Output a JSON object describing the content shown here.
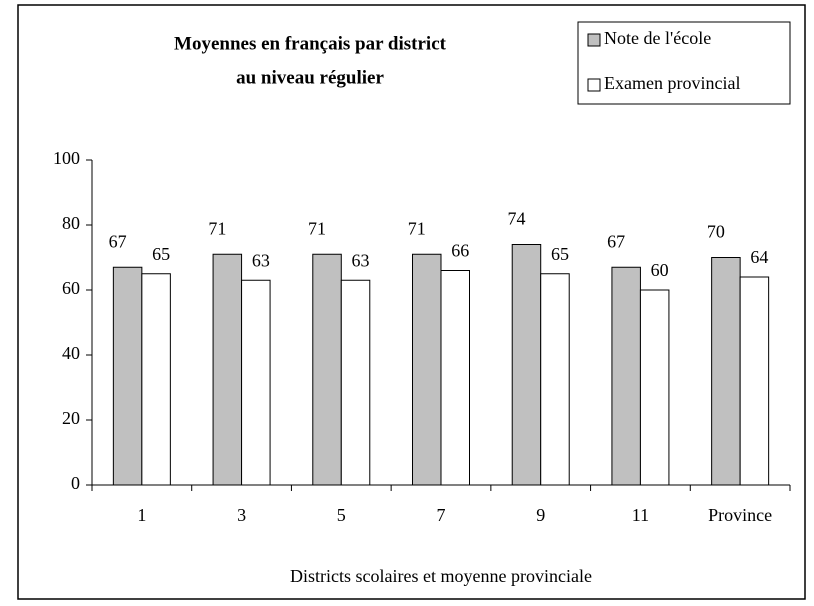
{
  "chart_data": {
    "type": "bar",
    "title": [
      "Moyennes en français par district",
      "au niveau régulier"
    ],
    "x_label": "Districts scolaires et moyenne provinciale",
    "categories": [
      "1",
      "3",
      "5",
      "7",
      "9",
      "11",
      "Province"
    ],
    "series": [
      {
        "name": "Note de l'école",
        "color": "#c0c0c0",
        "values": [
          67,
          71,
          71,
          71,
          74,
          67,
          70
        ]
      },
      {
        "name": "Examen provincial",
        "color": "#ffffff",
        "values": [
          65,
          63,
          63,
          66,
          65,
          60,
          64
        ]
      }
    ],
    "ylim": [
      0,
      100
    ],
    "yticks": [
      0,
      20,
      40,
      60,
      80,
      100
    ],
    "grid": false,
    "legend": "top-right"
  }
}
